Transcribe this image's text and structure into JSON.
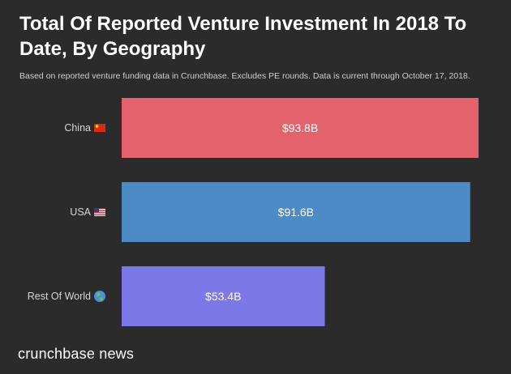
{
  "title": "Total Of Reported Venture Investment In 2018 To Date, By Geography",
  "subtitle": "Based on reported venture funding data in Crunchbase. Excludes PE rounds.  Data is current through October 17, 2018.",
  "brand": "crunchbase news",
  "chart_data": {
    "type": "bar",
    "orientation": "horizontal",
    "title": "Total Of Reported Venture Investment In 2018 To Date, By Geography",
    "subtitle": "Based on reported venture funding data in Crunchbase. Excludes PE rounds.  Data is current through October 17, 2018.",
    "categories": [
      "China",
      "USA",
      "Rest Of World"
    ],
    "values": [
      93.8,
      91.6,
      53.4
    ],
    "value_labels": [
      "$93.8B",
      "$91.6B",
      "$53.4B"
    ],
    "category_icons": [
      "china-flag-icon",
      "usa-flag-icon",
      "globe-icon"
    ],
    "colors": [
      "#e3626b",
      "#4d8bc7",
      "#7b78e8"
    ],
    "xlim": [
      0,
      93.8
    ],
    "grid": false,
    "legend": "none"
  }
}
